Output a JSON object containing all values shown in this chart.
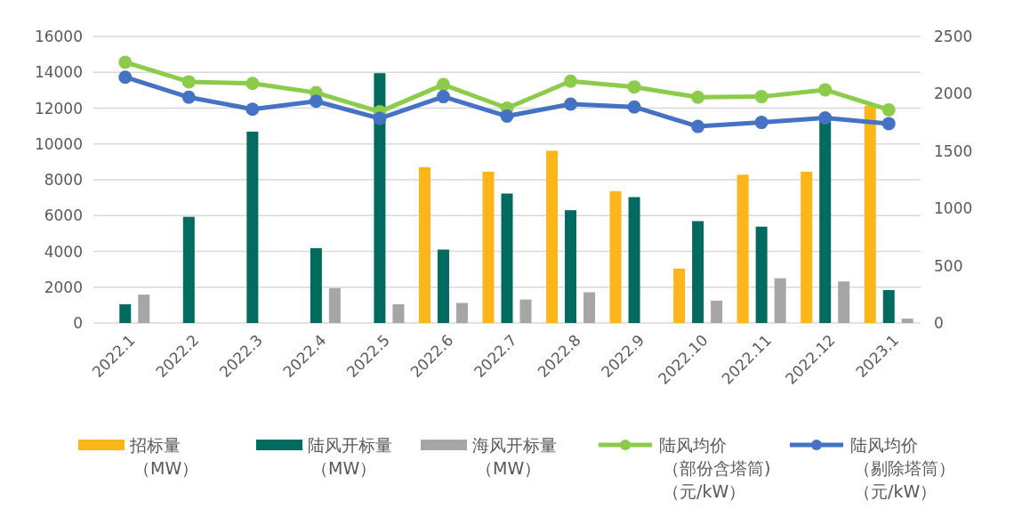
{
  "chart_data": {
    "type": "bar",
    "categories": [
      "2022.1",
      "2022.2",
      "2022.3",
      "2022.4",
      "2022.5",
      "2022.6",
      "2022.7",
      "2022.8",
      "2022.9",
      "2022.10",
      "2022.11",
      "2022.12",
      "2023.1"
    ],
    "series": [
      {
        "name": "招标量（MW）",
        "color": "#fcb619",
        "values": [
          null,
          null,
          null,
          null,
          null,
          8700,
          8450,
          9620,
          7360,
          3040,
          8280,
          8450,
          12130
        ]
      },
      {
        "name": "陆风开标量（MW）",
        "color": "#006b5e",
        "values": [
          1050,
          5930,
          10690,
          4180,
          13950,
          4100,
          7230,
          6300,
          7030,
          5690,
          5380,
          11450,
          1840
        ]
      },
      {
        "name": "海风开标量（MW）",
        "color": "#a6a6a6",
        "values": [
          1585,
          null,
          null,
          1950,
          1050,
          1120,
          1310,
          1715,
          null,
          1250,
          2500,
          2320,
          245
        ]
      },
      {
        "name": "陆风均价（部份含塔筒)（元/kW）",
        "color": "#8dcb4b",
        "type": "line",
        "axis": "y2",
        "values": [
          2275,
          2105,
          2090,
          2010,
          1843,
          2080,
          1875,
          2110,
          2060,
          1970,
          1975,
          2035,
          1860
        ]
      },
      {
        "name": "陆风均价（剔除塔筒）（元/kW）",
        "color": "#4472c4",
        "type": "line",
        "axis": "y2",
        "values": [
          2145,
          1970,
          1865,
          1935,
          1785,
          1975,
          1805,
          1910,
          1885,
          1715,
          1750,
          1790,
          1740
        ]
      }
    ],
    "ylim": [
      0,
      16000
    ],
    "yticks": [
      0,
      2000,
      4000,
      6000,
      8000,
      10000,
      12000,
      14000,
      16000
    ],
    "y2lim": [
      0,
      2500
    ],
    "y2ticks": [
      0,
      500,
      1000,
      1500,
      2000,
      2500
    ],
    "grid": "y",
    "legend": "bottom",
    "marker": "circle"
  }
}
